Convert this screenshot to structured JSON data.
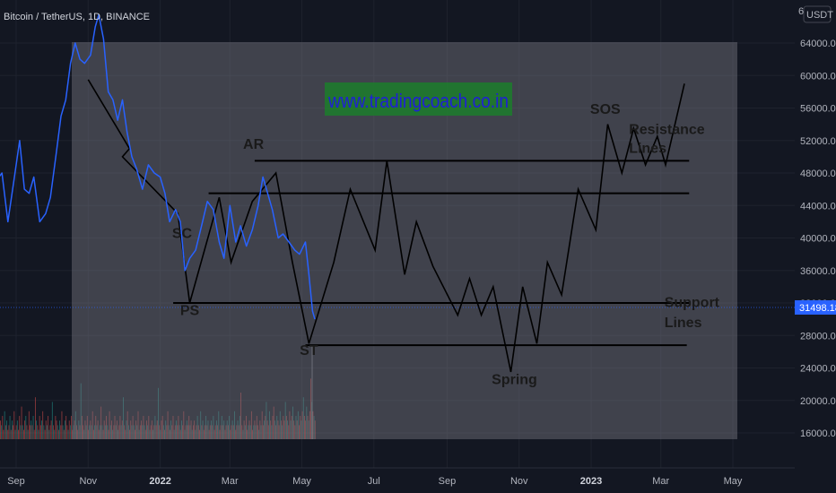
{
  "header": {
    "symbol_text": "Bitcoin / TetherUS, 1D, BINANCE",
    "currency_label": "USDT",
    "top_price_label": "6"
  },
  "watermark_text": "www.tradingcoach.co.in",
  "current_price": {
    "label": "31498.18",
    "color": "#2962ff"
  },
  "colors": {
    "background": "#131722",
    "overlay": "#7f7f87",
    "price_line": "#2962ff",
    "projection_line": "#000000",
    "level_line": "#000000",
    "volume_up": "#26a69a",
    "volume_down": "#ef5350",
    "watermark_bg": "#1e7a2e"
  },
  "chart_data": {
    "type": "line",
    "title": "",
    "price_axis": {
      "ticks": [
        "64000.00",
        "60000.00",
        "56000.00",
        "52000.00",
        "48000.00",
        "44000.00",
        "40000.00",
        "36000.00",
        "32000.00",
        "28000.00",
        "24000.00",
        "20000.00",
        "16000.00"
      ],
      "range": [
        14000,
        67000
      ]
    },
    "time_axis": {
      "ticks": [
        {
          "label": "Sep",
          "bold": false
        },
        {
          "label": "Nov",
          "bold": false
        },
        {
          "label": "2022",
          "bold": true
        },
        {
          "label": "Mar",
          "bold": false
        },
        {
          "label": "May",
          "bold": false
        },
        {
          "label": "Jul",
          "bold": false
        },
        {
          "label": "Sep",
          "bold": false
        },
        {
          "label": "Nov",
          "bold": false
        },
        {
          "label": "2023",
          "bold": true
        },
        {
          "label": "Mar",
          "bold": false
        },
        {
          "label": "May",
          "bold": false
        }
      ]
    },
    "series": [
      {
        "type": "line",
        "dates": [
          "2021-08-01",
          "2021-08-05",
          "2021-08-10",
          "2021-08-15",
          "2021-08-20",
          "2021-08-25",
          "2021-08-30",
          "2021-09-04",
          "2021-09-08",
          "2021-09-12",
          "2021-09-16",
          "2021-09-21",
          "2021-09-26",
          "2021-09-30",
          "2021-10-05",
          "2021-10-09",
          "2021-10-13",
          "2021-10-17",
          "2021-10-21",
          "2021-10-25",
          "2021-10-29",
          "2021-11-03",
          "2021-11-07",
          "2021-11-10",
          "2021-11-14",
          "2021-11-18",
          "2021-11-22",
          "2021-11-26",
          "2021-11-30",
          "2021-12-04",
          "2021-12-08",
          "2021-12-12",
          "2021-12-17",
          "2021-12-22",
          "2021-12-27",
          "2022-01-01",
          "2022-01-05",
          "2022-01-09",
          "2022-01-14",
          "2022-01-18",
          "2022-01-22",
          "2022-01-26",
          "2022-01-31",
          "2022-02-05",
          "2022-02-10",
          "2022-02-15",
          "2022-02-20",
          "2022-02-24",
          "2022-03-01",
          "2022-03-06",
          "2022-03-10",
          "2022-03-15",
          "2022-03-20",
          "2022-03-25",
          "2022-03-29",
          "2022-04-02",
          "2022-04-06",
          "2022-04-11",
          "2022-04-15",
          "2022-04-20",
          "2022-04-25",
          "2022-04-29",
          "2022-05-04",
          "2022-05-07",
          "2022-05-10",
          "2022-05-12"
        ],
        "values": [
          39500,
          46000,
          44500,
          47000,
          48000,
          42000,
          47000,
          52000,
          46000,
          45500,
          47500,
          42000,
          43000,
          45000,
          50500,
          55000,
          57000,
          61500,
          64000,
          62000,
          61500,
          62500,
          66000,
          67500,
          64500,
          58000,
          57000,
          54500,
          57000,
          53000,
          50000,
          48500,
          46000,
          49000,
          48000,
          47500,
          45500,
          42000,
          43500,
          42000,
          36000,
          37500,
          38500,
          41500,
          44500,
          43500,
          39500,
          37500,
          44000,
          39500,
          41500,
          39000,
          41000,
          44000,
          47500,
          45500,
          43500,
          40000,
          40500,
          39500,
          38500,
          38000,
          39500,
          35500,
          31000,
          30000
        ]
      }
    ],
    "projection": {
      "dates": [
        "2021-11-01",
        "2021-12-06",
        "2021-11-30",
        "2022-01-16",
        "2022-01-26",
        "2022-02-20",
        "2022-03-02",
        "2022-03-20",
        "2022-04-09",
        "2022-04-23",
        "2022-05-07",
        "2022-05-28",
        "2022-06-11",
        "2022-07-02",
        "2022-07-12",
        "2022-07-27",
        "2022-08-06",
        "2022-08-20",
        "2022-09-10",
        "2022-09-20",
        "2022-09-30",
        "2022-10-10",
        "2022-10-25",
        "2022-11-04",
        "2022-11-16",
        "2022-11-25",
        "2022-12-07",
        "2022-12-21",
        "2023-01-05",
        "2023-01-15",
        "2023-01-27",
        "2023-02-06",
        "2023-02-16",
        "2023-02-26",
        "2023-03-05",
        "2023-03-21"
      ],
      "values": [
        59500,
        51000,
        50000,
        43000,
        32000,
        45000,
        37000,
        44500,
        48000,
        37000,
        27000,
        37000,
        46000,
        38500,
        49500,
        35500,
        42000,
        36500,
        30500,
        35000,
        30500,
        34000,
        23500,
        34000,
        27000,
        37000,
        33000,
        46000,
        41000,
        54000,
        48000,
        53500,
        49000,
        52500,
        49000,
        59000
      ]
    },
    "levels": [
      {
        "value": 49500,
        "from": "2022-03-22",
        "to": "2023-03-25"
      },
      {
        "value": 45500,
        "from": "2022-02-11",
        "to": "2023-03-25"
      },
      {
        "value": 32000,
        "from": "2022-01-12",
        "to": "2023-03-26"
      },
      {
        "value": 26800,
        "from": "2022-05-04",
        "to": "2023-03-23"
      }
    ],
    "annotations": [
      {
        "text": "AR",
        "date": "2022-03-21",
        "value": 51000,
        "anchor": "middle"
      },
      {
        "text": "SC",
        "date": "2022-01-28",
        "value": 40000,
        "anchor": "end"
      },
      {
        "text": "PS",
        "date": "2022-01-26",
        "value": 30500,
        "anchor": "middle"
      },
      {
        "text": "ST",
        "date": "2022-05-07",
        "value": 25600,
        "anchor": "middle"
      },
      {
        "text": "Spring",
        "date": "2022-10-28",
        "value": 22000,
        "anchor": "middle"
      },
      {
        "text": "SOS",
        "date": "2023-01-13",
        "value": 55300,
        "anchor": "middle"
      },
      {
        "text": "Resistance",
        "date": "2023-02-02",
        "value": 52800,
        "anchor": "start"
      },
      {
        "text": "Lines",
        "date": "2023-02-02",
        "value": 50500,
        "anchor": "start"
      },
      {
        "text": "Support",
        "date": "2023-03-04",
        "value": 31500,
        "anchor": "start"
      },
      {
        "text": "Lines",
        "date": "2023-03-04",
        "value": 29000,
        "anchor": "start"
      }
    ],
    "volume": [
      4,
      3,
      5,
      2,
      6,
      3,
      4,
      2,
      3,
      5,
      2,
      4,
      3,
      6,
      2,
      3,
      4,
      2,
      5,
      3,
      7,
      3,
      2,
      4,
      5,
      3,
      2,
      6,
      3,
      4,
      3,
      5,
      2,
      9,
      4,
      3,
      2,
      5,
      3,
      4,
      6,
      3,
      2,
      4,
      3,
      5,
      2,
      3,
      4,
      8,
      3,
      2,
      5,
      4,
      3,
      2,
      4,
      3,
      6,
      3,
      2,
      4,
      5,
      3,
      2,
      4,
      3,
      5,
      2,
      3,
      4,
      6,
      3,
      2,
      4,
      3,
      12,
      5,
      3,
      2,
      4,
      3,
      5,
      2,
      3,
      4,
      3,
      6,
      2,
      3,
      5,
      3,
      4,
      2,
      3,
      7,
      3,
      2,
      4,
      3,
      5,
      3,
      2,
      6,
      3,
      4,
      2,
      3,
      5,
      3,
      4,
      2,
      3,
      5,
      3,
      4,
      9,
      3,
      2,
      4,
      6,
      3,
      2,
      4,
      3,
      5,
      3,
      2,
      4,
      3,
      6,
      2,
      3,
      4,
      3,
      5,
      3,
      2,
      4,
      3,
      5,
      2,
      3,
      4,
      2,
      3,
      5,
      3,
      4,
      11,
      3,
      2,
      4,
      5,
      3,
      2,
      4,
      3,
      6,
      3,
      2,
      4,
      3,
      5,
      2,
      3,
      4,
      3,
      5,
      3,
      2,
      4,
      3,
      6,
      2,
      3,
      4,
      3,
      5,
      3,
      4,
      2,
      3,
      4,
      2,
      3,
      5,
      3,
      2,
      6,
      3,
      4,
      2,
      3,
      5,
      3,
      4,
      2,
      3,
      4,
      3,
      5,
      2,
      3,
      4,
      3,
      6,
      2,
      3,
      5,
      3,
      4,
      2,
      3,
      4,
      3,
      5,
      2,
      3,
      4,
      3,
      6,
      2,
      3,
      4,
      3,
      5,
      10,
      3,
      2,
      4,
      3,
      5,
      2,
      3,
      4,
      3,
      6,
      2,
      3,
      4,
      3,
      5,
      3,
      2,
      4,
      3,
      6,
      3,
      4,
      5,
      8,
      4,
      3,
      6,
      4,
      3,
      5,
      7,
      4,
      3,
      5,
      4,
      3,
      6,
      4,
      3,
      5,
      4,
      8,
      5,
      4,
      3,
      6,
      4,
      5,
      7,
      4,
      3,
      5,
      4,
      6,
      3,
      5,
      4,
      6,
      9,
      5,
      4,
      7,
      5,
      4,
      6,
      13,
      8,
      6,
      5,
      4
    ]
  }
}
